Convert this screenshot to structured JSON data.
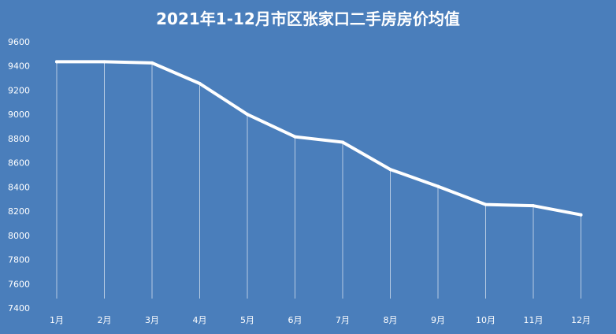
{
  "chart_data": {
    "type": "line",
    "title": "2021年1-12月市区张家口二手房房价均值",
    "categories": [
      "1月",
      "2月",
      "3月",
      "4月",
      "5月",
      "6月",
      "7月",
      "8月",
      "9月",
      "10月",
      "11月",
      "12月"
    ],
    "values": [
      9435,
      9435,
      9425,
      9255,
      9000,
      8815,
      8770,
      8545,
      8405,
      8255,
      8245,
      8170
    ],
    "ylim": [
      7400,
      9600
    ],
    "yticks": [
      7400,
      7600,
      7800,
      8000,
      8200,
      8400,
      8600,
      8800,
      9000,
      9200,
      9400,
      9600
    ],
    "xlabel": "",
    "ylabel": "",
    "grid": false,
    "drop_lines": true,
    "colors": {
      "background": "#4a7ebb",
      "line": "#ffffff",
      "text": "#ffffff"
    }
  }
}
